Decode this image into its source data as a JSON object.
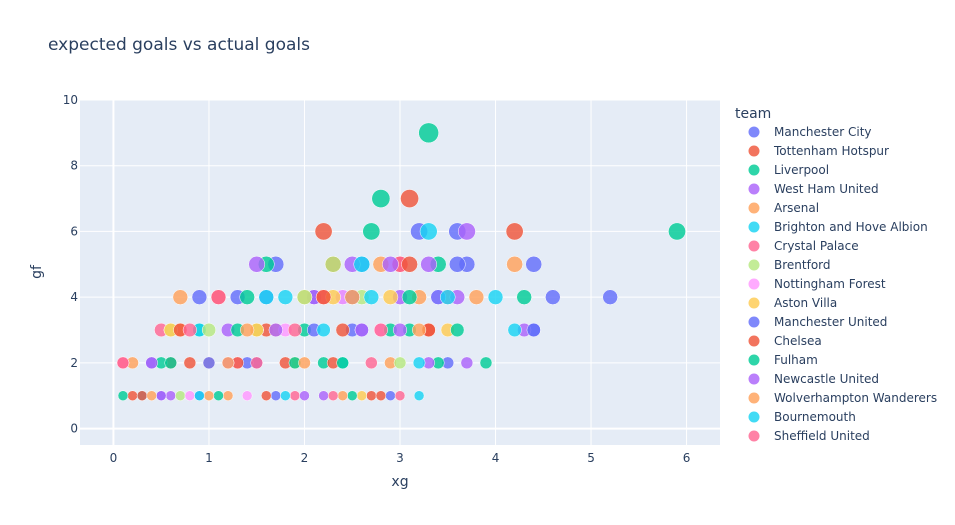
{
  "chart_data": {
    "type": "scatter",
    "title": "expected goals vs actual goals",
    "xlabel": "xg",
    "ylabel": "gf",
    "xlim": [
      -0.35,
      6.35
    ],
    "ylim": [
      -0.5,
      10
    ],
    "x_ticks": [
      0,
      1,
      2,
      3,
      4,
      5,
      6
    ],
    "y_ticks": [
      0,
      2,
      4,
      6,
      8,
      10
    ],
    "x_tick_labels": [
      "0",
      "1",
      "2",
      "3",
      "4",
      "5",
      "6"
    ],
    "y_tick_labels": [
      "0",
      "2",
      "4",
      "6",
      "8",
      "10"
    ],
    "grid": true,
    "legend_title": "team",
    "legend_position": "right",
    "size_encodes": "gf",
    "series": [
      {
        "name": "Manchester City",
        "color": "#636efa",
        "points": [
          [
            0.3,
            1
          ],
          [
            0.4,
            2
          ],
          [
            0.9,
            4
          ],
          [
            1.3,
            4
          ],
          [
            1.7,
            5
          ],
          [
            2.1,
            4
          ],
          [
            2.4,
            4
          ],
          [
            2.6,
            5
          ],
          [
            3.2,
            6
          ],
          [
            3.6,
            6
          ],
          [
            3.7,
            5
          ],
          [
            4.4,
            5
          ],
          [
            4.6,
            4
          ],
          [
            5.2,
            4
          ],
          [
            4.4,
            3
          ],
          [
            3.5,
            2
          ],
          [
            2.5,
            3
          ],
          [
            1.5,
            2
          ]
        ]
      },
      {
        "name": "Tottenham Hotspur",
        "color": "#ef553b",
        "points": [
          [
            0.2,
            1
          ],
          [
            0.8,
            2
          ],
          [
            1.1,
            4
          ],
          [
            1.6,
            3
          ],
          [
            2.2,
            6
          ],
          [
            2.3,
            5
          ],
          [
            3.1,
            7
          ],
          [
            3.0,
            5
          ],
          [
            4.2,
            6
          ],
          [
            3.3,
            3
          ],
          [
            2.7,
            1
          ],
          [
            1.9,
            2
          ],
          [
            0.6,
            2
          ]
        ]
      },
      {
        "name": "Liverpool",
        "color": "#00cc96",
        "points": [
          [
            0.1,
            1
          ],
          [
            0.5,
            2
          ],
          [
            0.9,
            3
          ],
          [
            1.4,
            4
          ],
          [
            1.6,
            5
          ],
          [
            2.0,
            3
          ],
          [
            2.8,
            7
          ],
          [
            2.7,
            6
          ],
          [
            3.3,
            9
          ],
          [
            3.4,
            5
          ],
          [
            4.3,
            4
          ],
          [
            5.9,
            6
          ],
          [
            3.9,
            2
          ],
          [
            3.1,
            3
          ],
          [
            2.2,
            2
          ]
        ]
      },
      {
        "name": "West Ham United",
        "color": "#ab63fa",
        "points": [
          [
            0.4,
            2
          ],
          [
            0.6,
            1
          ],
          [
            1.2,
            3
          ],
          [
            1.5,
            5
          ],
          [
            2.1,
            4
          ],
          [
            2.5,
            5
          ],
          [
            3.0,
            4
          ],
          [
            3.7,
            6
          ],
          [
            3.3,
            5
          ],
          [
            4.3,
            3
          ],
          [
            3.7,
            2
          ],
          [
            2.2,
            1
          ]
        ]
      },
      {
        "name": "Arsenal",
        "color": "#ffa15a",
        "points": [
          [
            0.2,
            2
          ],
          [
            0.7,
            4
          ],
          [
            1.0,
            2
          ],
          [
            1.7,
            3
          ],
          [
            2.0,
            4
          ],
          [
            2.8,
            5
          ],
          [
            3.2,
            4
          ],
          [
            4.2,
            5
          ],
          [
            3.8,
            4
          ],
          [
            2.9,
            2
          ],
          [
            1.2,
            1
          ],
          [
            0.7,
            3
          ]
        ]
      },
      {
        "name": "Brighton and Hove Albion",
        "color": "#19d3f3",
        "points": [
          [
            0.3,
            1
          ],
          [
            0.9,
            3
          ],
          [
            1.8,
            4
          ],
          [
            2.6,
            5
          ],
          [
            3.3,
            6
          ],
          [
            4.0,
            4
          ],
          [
            4.2,
            3
          ],
          [
            3.2,
            1
          ],
          [
            2.4,
            2
          ]
        ]
      },
      {
        "name": "Crystal Palace",
        "color": "#ff6692",
        "points": [
          [
            0.1,
            2
          ],
          [
            0.5,
            3
          ],
          [
            1.1,
            4
          ],
          [
            1.5,
            3
          ],
          [
            2.2,
            4
          ],
          [
            3.0,
            5
          ],
          [
            3.5,
            4
          ],
          [
            2.7,
            2
          ],
          [
            1.9,
            1
          ]
        ]
      },
      {
        "name": "Brentford",
        "color": "#b6e880",
        "points": [
          [
            0.6,
            3
          ],
          [
            1.0,
            3
          ],
          [
            1.5,
            3
          ],
          [
            2.0,
            4
          ],
          [
            2.3,
            5
          ],
          [
            2.6,
            4
          ],
          [
            3.0,
            2
          ],
          [
            0.7,
            1
          ]
        ]
      },
      {
        "name": "Nottingham Forest",
        "color": "#ff97ff",
        "points": [
          [
            0.8,
            1
          ],
          [
            1.3,
            2
          ],
          [
            1.8,
            3
          ],
          [
            2.4,
            4
          ],
          [
            2.8,
            3
          ],
          [
            3.4,
            4
          ],
          [
            1.4,
            1
          ]
        ]
      },
      {
        "name": "Aston Villa",
        "color": "#fecb52",
        "points": [
          [
            0.6,
            3
          ],
          [
            1.5,
            3
          ],
          [
            1.9,
            2
          ],
          [
            2.3,
            4
          ],
          [
            2.9,
            4
          ],
          [
            3.5,
            3
          ],
          [
            2.6,
            1
          ]
        ]
      },
      {
        "name": "Manchester United",
        "color": "#636efa",
        "points": [
          [
            0.5,
            1
          ],
          [
            1.0,
            2
          ],
          [
            1.6,
            4
          ],
          [
            2.5,
            4
          ],
          [
            2.9,
            1
          ],
          [
            3.4,
            4
          ],
          [
            3.6,
            5
          ],
          [
            4.4,
            3
          ],
          [
            1.4,
            2
          ],
          [
            2.1,
            3
          ],
          [
            2.6,
            3
          ],
          [
            0.9,
            1
          ],
          [
            1.7,
            1
          ]
        ]
      },
      {
        "name": "Chelsea",
        "color": "#ef553b",
        "points": [
          [
            0.3,
            1
          ],
          [
            0.7,
            3
          ],
          [
            1.3,
            2
          ],
          [
            1.8,
            2
          ],
          [
            2.2,
            4
          ],
          [
            2.4,
            3
          ],
          [
            3.1,
            5
          ],
          [
            3.3,
            3
          ],
          [
            2.3,
            2
          ],
          [
            1.6,
            1
          ],
          [
            2.8,
            1
          ]
        ]
      },
      {
        "name": "Fulham",
        "color": "#00cc96",
        "points": [
          [
            0.6,
            2
          ],
          [
            1.3,
            3
          ],
          [
            1.9,
            2
          ],
          [
            2.4,
            2
          ],
          [
            2.9,
            3
          ],
          [
            3.6,
            3
          ],
          [
            2.5,
            1
          ],
          [
            1.1,
            1
          ],
          [
            3.1,
            4
          ],
          [
            3.4,
            2
          ]
        ]
      },
      {
        "name": "Newcastle United",
        "color": "#ab63fa",
        "points": [
          [
            0.5,
            1
          ],
          [
            1.2,
            2
          ],
          [
            1.7,
            3
          ],
          [
            2.6,
            3
          ],
          [
            3.0,
            3
          ],
          [
            3.6,
            4
          ],
          [
            2.9,
            5
          ],
          [
            2.0,
            1
          ],
          [
            3.3,
            2
          ]
        ]
      },
      {
        "name": "Wolverhampton Wanderers",
        "color": "#ffa15a",
        "points": [
          [
            0.4,
            1
          ],
          [
            1.0,
            1
          ],
          [
            1.4,
            3
          ],
          [
            2.0,
            2
          ],
          [
            2.5,
            4
          ],
          [
            3.2,
            3
          ],
          [
            1.2,
            2
          ],
          [
            2.4,
            1
          ]
        ]
      },
      {
        "name": "Bournemouth",
        "color": "#19d3f3",
        "points": [
          [
            0.9,
            1
          ],
          [
            1.6,
            4
          ],
          [
            2.2,
            3
          ],
          [
            2.7,
            4
          ],
          [
            3.5,
            4
          ],
          [
            3.2,
            2
          ],
          [
            1.8,
            1
          ]
        ]
      },
      {
        "name": "Sheffield United",
        "color": "#ff6692",
        "points": [
          [
            0.1,
            2
          ],
          [
            0.8,
            3
          ],
          [
            1.5,
            2
          ],
          [
            2.3,
            1
          ],
          [
            2.8,
            3
          ],
          [
            3.0,
            1
          ],
          [
            1.9,
            3
          ]
        ]
      }
    ]
  }
}
